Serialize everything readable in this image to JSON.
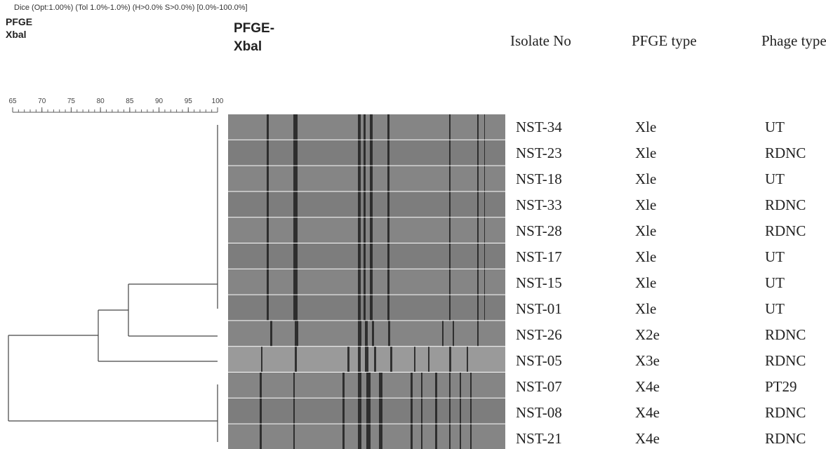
{
  "header": {
    "method": "Dice (Opt:1.00%) (Tol 1.0%-1.0%) (H>0.0% S>0.0%) [0.0%-100.0%]",
    "left_label": [
      "PFGE",
      "Xbal"
    ],
    "gel_label": [
      "PFGE-",
      "Xbal"
    ]
  },
  "scale": {
    "ticks": [
      65,
      70,
      75,
      80,
      85,
      90,
      95,
      100
    ]
  },
  "table": {
    "columns": [
      "Isolate No",
      "PFGE type",
      "Phage type"
    ],
    "rows": [
      [
        "NST-34",
        "Xle",
        "UT"
      ],
      [
        "NST-23",
        "Xle",
        "RDNC"
      ],
      [
        "NST-18",
        "Xle",
        "UT"
      ],
      [
        "NST-33",
        "Xle",
        "RDNC"
      ],
      [
        "NST-28",
        "Xle",
        "RDNC"
      ],
      [
        "NST-17",
        "Xle",
        "UT"
      ],
      [
        "NST-15",
        "Xle",
        "UT"
      ],
      [
        "NST-01",
        "Xle",
        "UT"
      ],
      [
        "NST-26",
        "X2e",
        "RDNC"
      ],
      [
        "NST-05",
        "X3e",
        "RDNC"
      ],
      [
        "NST-07",
        "X4e",
        "PT29"
      ],
      [
        "NST-08",
        "X4e",
        "RDNC"
      ],
      [
        "NST-21",
        "X4e",
        "RDNC"
      ]
    ]
  }
}
